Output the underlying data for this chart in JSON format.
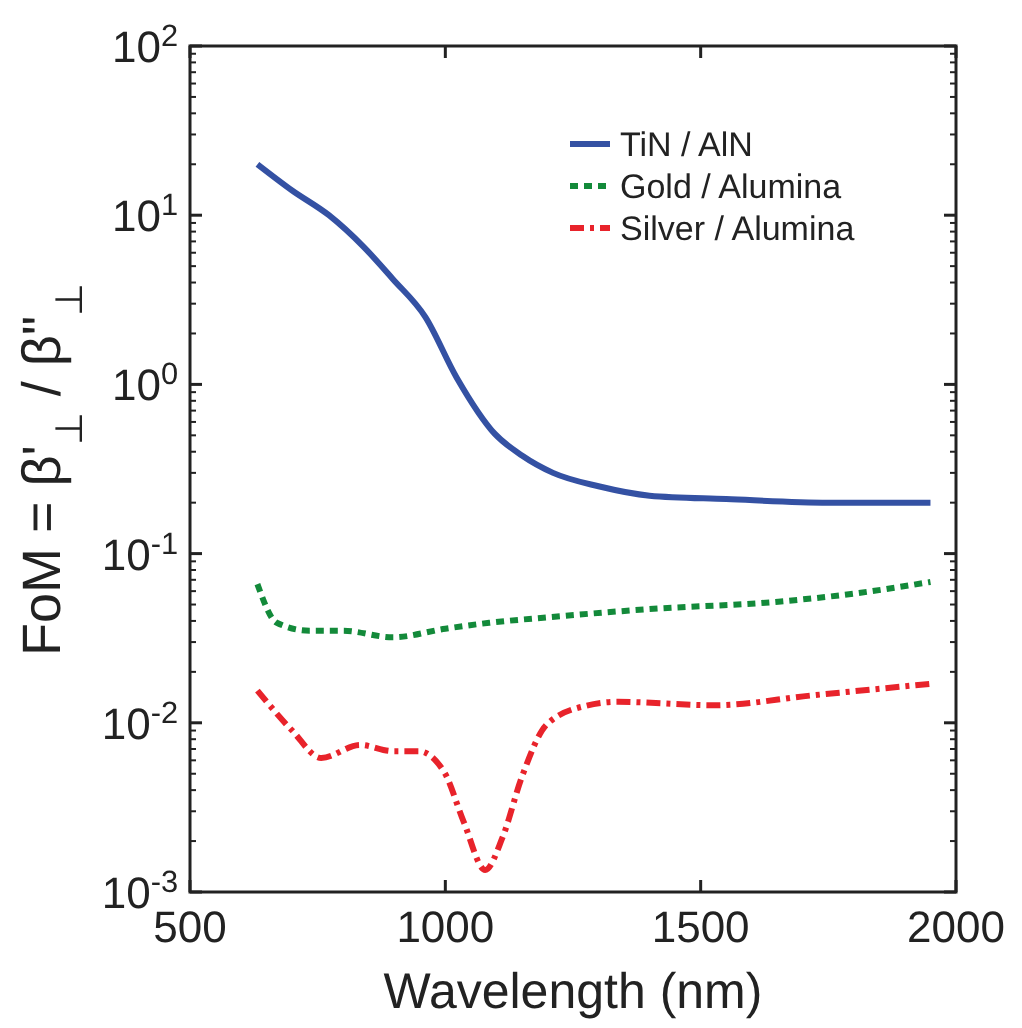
{
  "chart_data": {
    "type": "line",
    "xlabel": "Wavelength (nm)",
    "ylabel": "FoM = β'$_{⊥}$ / β\"$_{⊥}$",
    "log": "y",
    "xlim": [
      500,
      2000
    ],
    "xticks": [
      500,
      1000,
      1500,
      2000
    ],
    "ylim": [
      0.001,
      100
    ],
    "yticks": [
      {
        "value": 0.001,
        "label": "10$^{-3}$"
      },
      {
        "value": 0.01,
        "label": "10$^{-2}$"
      },
      {
        "value": 0.1,
        "label": "10$^{-1}$"
      },
      {
        "value": 1,
        "label": "10$^{0}$"
      },
      {
        "value": 10,
        "label": "10$^{1}$"
      },
      {
        "value": 100,
        "label": "10$^{2}$"
      }
    ],
    "grid": false,
    "legend": "top right",
    "series": [
      {
        "name": "TiN / AlN",
        "color": "#3451a3",
        "line_style": "solid",
        "x": [
          632,
          700,
          772,
          840,
          897,
          961,
          1022,
          1097,
          1150,
          1211,
          1300,
          1400,
          1550,
          1750,
          1950
        ],
        "values": [
          20,
          14,
          10,
          6.5,
          4.2,
          2.5,
          1.1,
          0.51,
          0.38,
          0.3,
          0.25,
          0.22,
          0.21,
          0.2,
          0.2
        ]
      },
      {
        "name": "Gold / Alumina",
        "color": "#138a3a",
        "line_style": "dotted",
        "x": [
          632,
          670,
          734,
          800,
          897,
          1000,
          1086,
          1200,
          1400,
          1652,
          1800,
          1950
        ],
        "values": [
          0.066,
          0.039,
          0.035,
          0.035,
          0.032,
          0.036,
          0.039,
          0.042,
          0.047,
          0.052,
          0.058,
          0.068
        ]
      },
      {
        "name": "Silver / Alumina",
        "color": "#e8232b",
        "line_style": "dashed",
        "x": [
          632,
          700,
          757,
          833,
          897,
          947,
          998,
          1036,
          1078,
          1112,
          1150,
          1199,
          1275,
          1338,
          1527,
          1716,
          1950
        ],
        "values": [
          0.0155,
          0.009,
          0.0062,
          0.0074,
          0.0068,
          0.0068,
          0.0051,
          0.0026,
          0.00135,
          0.0021,
          0.0048,
          0.0098,
          0.0126,
          0.0133,
          0.0127,
          0.0145,
          0.017
        ]
      }
    ]
  }
}
